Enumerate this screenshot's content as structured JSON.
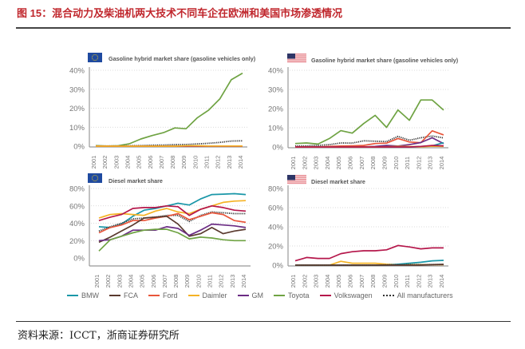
{
  "figure": {
    "title": "图 15：混合动力及柴油机两大技术不同车企在欧洲和美国市场渗透情况",
    "source": "资料来源：ICCT，浙商证券研究所"
  },
  "colors": {
    "title_red": "#c0272d",
    "BMW": "#1a97a8",
    "FCA": "#5a3a2e",
    "Ford": "#e8553a",
    "Daimler": "#f5b325",
    "GM": "#6b2c84",
    "Toyota": "#6fa343",
    "Volkswagen": "#b5174b",
    "All manufacturers": "#333333"
  },
  "legend": [
    "BMW",
    "FCA",
    "Ford",
    "Daimler",
    "GM",
    "Toyota",
    "Volkswagen",
    "All manufacturers"
  ],
  "chart_data": [
    {
      "type": "line",
      "region": "EU",
      "flag": "eu-flag",
      "title": "Gasoline hybrid market share (gasoline vehicles only)",
      "x": [
        "2001",
        "2002",
        "2003",
        "2004",
        "2005",
        "2006",
        "2007",
        "2008",
        "2009",
        "2010",
        "2011",
        "2012",
        "2013",
        "2014"
      ],
      "yticks": [
        "0%",
        "10%",
        "20%",
        "30%",
        "40%"
      ],
      "ylim": [
        0,
        40
      ],
      "grid": true,
      "series": [
        {
          "name": "Toyota",
          "values": [
            0.3,
            0.1,
            0.2,
            1.3,
            3.8,
            5.6,
            7.1,
            9.6,
            9.2,
            15,
            19,
            25,
            35,
            38.5
          ]
        },
        {
          "name": "All manufacturers",
          "values": [
            0.1,
            0.1,
            0.1,
            0.2,
            0.3,
            0.5,
            0.6,
            0.8,
            0.9,
            1.2,
            1.5,
            2,
            2.7,
            2.8
          ]
        },
        {
          "name": "Volkswagen",
          "values": [
            0,
            0,
            0,
            0,
            0,
            0,
            0,
            0,
            0,
            0,
            0,
            0,
            0,
            0
          ]
        },
        {
          "name": "Daimler",
          "values": [
            0,
            0,
            0,
            0,
            0,
            0,
            0,
            0,
            0.2,
            0.2,
            0.1,
            0.1,
            0.1,
            0.1
          ]
        }
      ]
    },
    {
      "type": "line",
      "region": "US",
      "flag": "us-flag",
      "title": "Gasoline hybrid market share (gasoline vehicles only)",
      "x": [
        "2001",
        "2002",
        "2003",
        "2004",
        "2005",
        "2006",
        "2007",
        "2008",
        "2009",
        "2010",
        "2011",
        "2012",
        "2013",
        "2014"
      ],
      "yticks": [
        "0%",
        "10%",
        "20%",
        "30%",
        "40%"
      ],
      "ylim": [
        0,
        40
      ],
      "grid": true,
      "series": [
        {
          "name": "Toyota",
          "values": [
            1.8,
            2.1,
            1.5,
            4.4,
            8.5,
            7.2,
            12.2,
            16.5,
            10.2,
            19.3,
            13.9,
            24.5,
            24.5,
            19.2
          ]
        },
        {
          "name": "All manufacturers",
          "values": [
            0.5,
            0.6,
            0.8,
            1.2,
            2.1,
            2,
            3.2,
            3,
            2.8,
            5.5,
            3.5,
            4.8,
            5.7,
            4.7
          ]
        },
        {
          "name": "Ford",
          "values": [
            0,
            0,
            0,
            0.3,
            0.5,
            0.6,
            0.8,
            1.8,
            2,
            4.4,
            2.6,
            2.2,
            8.4,
            6.3
          ]
        },
        {
          "name": "GM",
          "values": [
            0,
            0,
            0,
            0,
            0,
            0,
            0,
            0.3,
            0.8,
            0.5,
            1.2,
            2.3,
            4.8,
            1.7
          ]
        },
        {
          "name": "BMW",
          "values": [
            0,
            0,
            0,
            0,
            0,
            0,
            0,
            0,
            0,
            0,
            0,
            0.2,
            0.6,
            2.2
          ]
        },
        {
          "name": "Daimler",
          "values": [
            0,
            0,
            0,
            0,
            0,
            0,
            0,
            0,
            0.1,
            0.3,
            0.2,
            0.1,
            0.4,
            0.3
          ]
        },
        {
          "name": "Volkswagen",
          "values": [
            0,
            0,
            0,
            0,
            0,
            0,
            0,
            0,
            0,
            0,
            0,
            0.3,
            0.8,
            0.6
          ]
        }
      ]
    },
    {
      "type": "line",
      "region": "EU",
      "flag": "eu-flag",
      "title": "Diesel market share",
      "x": [
        "2001",
        "2002",
        "2003",
        "2004",
        "2005",
        "2006",
        "2007",
        "2008",
        "2009",
        "2010",
        "2011",
        "2012",
        "2013",
        "2014"
      ],
      "yticks": [
        "0%",
        "20%",
        "40%",
        "60%",
        "80%"
      ],
      "ylim": [
        0,
        80
      ],
      "grid": true,
      "series": [
        {
          "name": "BMW",
          "values": [
            36,
            35,
            39,
            48,
            55,
            57,
            60,
            63,
            61,
            68,
            73,
            73.5,
            74,
            73
          ]
        },
        {
          "name": "Daimler",
          "values": [
            46,
            50,
            51,
            50,
            49,
            54,
            57,
            53,
            51,
            56,
            60,
            64,
            65.5,
            66
          ]
        },
        {
          "name": "Volkswagen",
          "values": [
            43,
            47,
            50,
            57,
            58,
            58,
            60,
            59,
            49,
            56,
            60,
            58,
            55,
            54
          ]
        },
        {
          "name": "All manufacturers",
          "values": [
            31,
            36,
            40,
            45,
            46,
            47,
            49,
            49,
            42,
            49,
            53,
            52,
            51,
            51
          ]
        },
        {
          "name": "Ford",
          "values": [
            29,
            35,
            38,
            43,
            43,
            46,
            48,
            51,
            44,
            48,
            52,
            50,
            43,
            41
          ]
        },
        {
          "name": "FCA",
          "values": [
            18,
            24,
            31,
            38,
            46,
            47,
            48,
            39,
            25,
            28,
            35,
            28,
            31,
            33
          ]
        },
        {
          "name": "GM",
          "values": [
            20,
            21,
            25,
            32,
            32,
            32,
            36,
            34,
            26,
            32,
            39,
            38,
            37,
            35
          ]
        },
        {
          "name": "Toyota",
          "values": [
            8,
            21,
            25,
            29,
            32,
            33,
            33,
            29,
            22,
            24,
            23,
            21,
            20,
            20
          ]
        }
      ]
    },
    {
      "type": "line",
      "region": "US",
      "flag": "us-flag",
      "title": "Diesel market share",
      "x": [
        "2001",
        "2002",
        "2003",
        "2004",
        "2005",
        "2006",
        "2007",
        "2008",
        "2009",
        "2010",
        "2011",
        "2012",
        "2013",
        "2014"
      ],
      "yticks": [
        "0%",
        "20%",
        "40%",
        "60%",
        "80%"
      ],
      "ylim": [
        0,
        80
      ],
      "grid": true,
      "series": [
        {
          "name": "Volkswagen",
          "values": [
            4.5,
            8,
            7,
            7,
            12,
            14,
            15,
            15,
            16,
            20.5,
            19,
            17,
            18,
            18
          ]
        },
        {
          "name": "Daimler",
          "values": [
            0,
            0,
            0,
            0,
            4,
            2,
            2,
            2,
            1,
            0.5,
            0.5,
            0.5,
            0.5,
            0.5
          ]
        },
        {
          "name": "BMW",
          "values": [
            0,
            0,
            0,
            0,
            0,
            0,
            0,
            0,
            0,
            1,
            2,
            3,
            4.5,
            5
          ]
        },
        {
          "name": "All manufacturers",
          "values": [
            0,
            0,
            0,
            0,
            0,
            0,
            0,
            0,
            0.3,
            0.5,
            0.5,
            0.5,
            0.6,
            0.7
          ]
        },
        {
          "name": "FCA",
          "values": [
            0,
            0,
            0,
            0,
            0,
            0,
            0,
            0,
            0,
            0,
            0,
            0,
            0.5,
            0.8
          ]
        }
      ]
    }
  ]
}
